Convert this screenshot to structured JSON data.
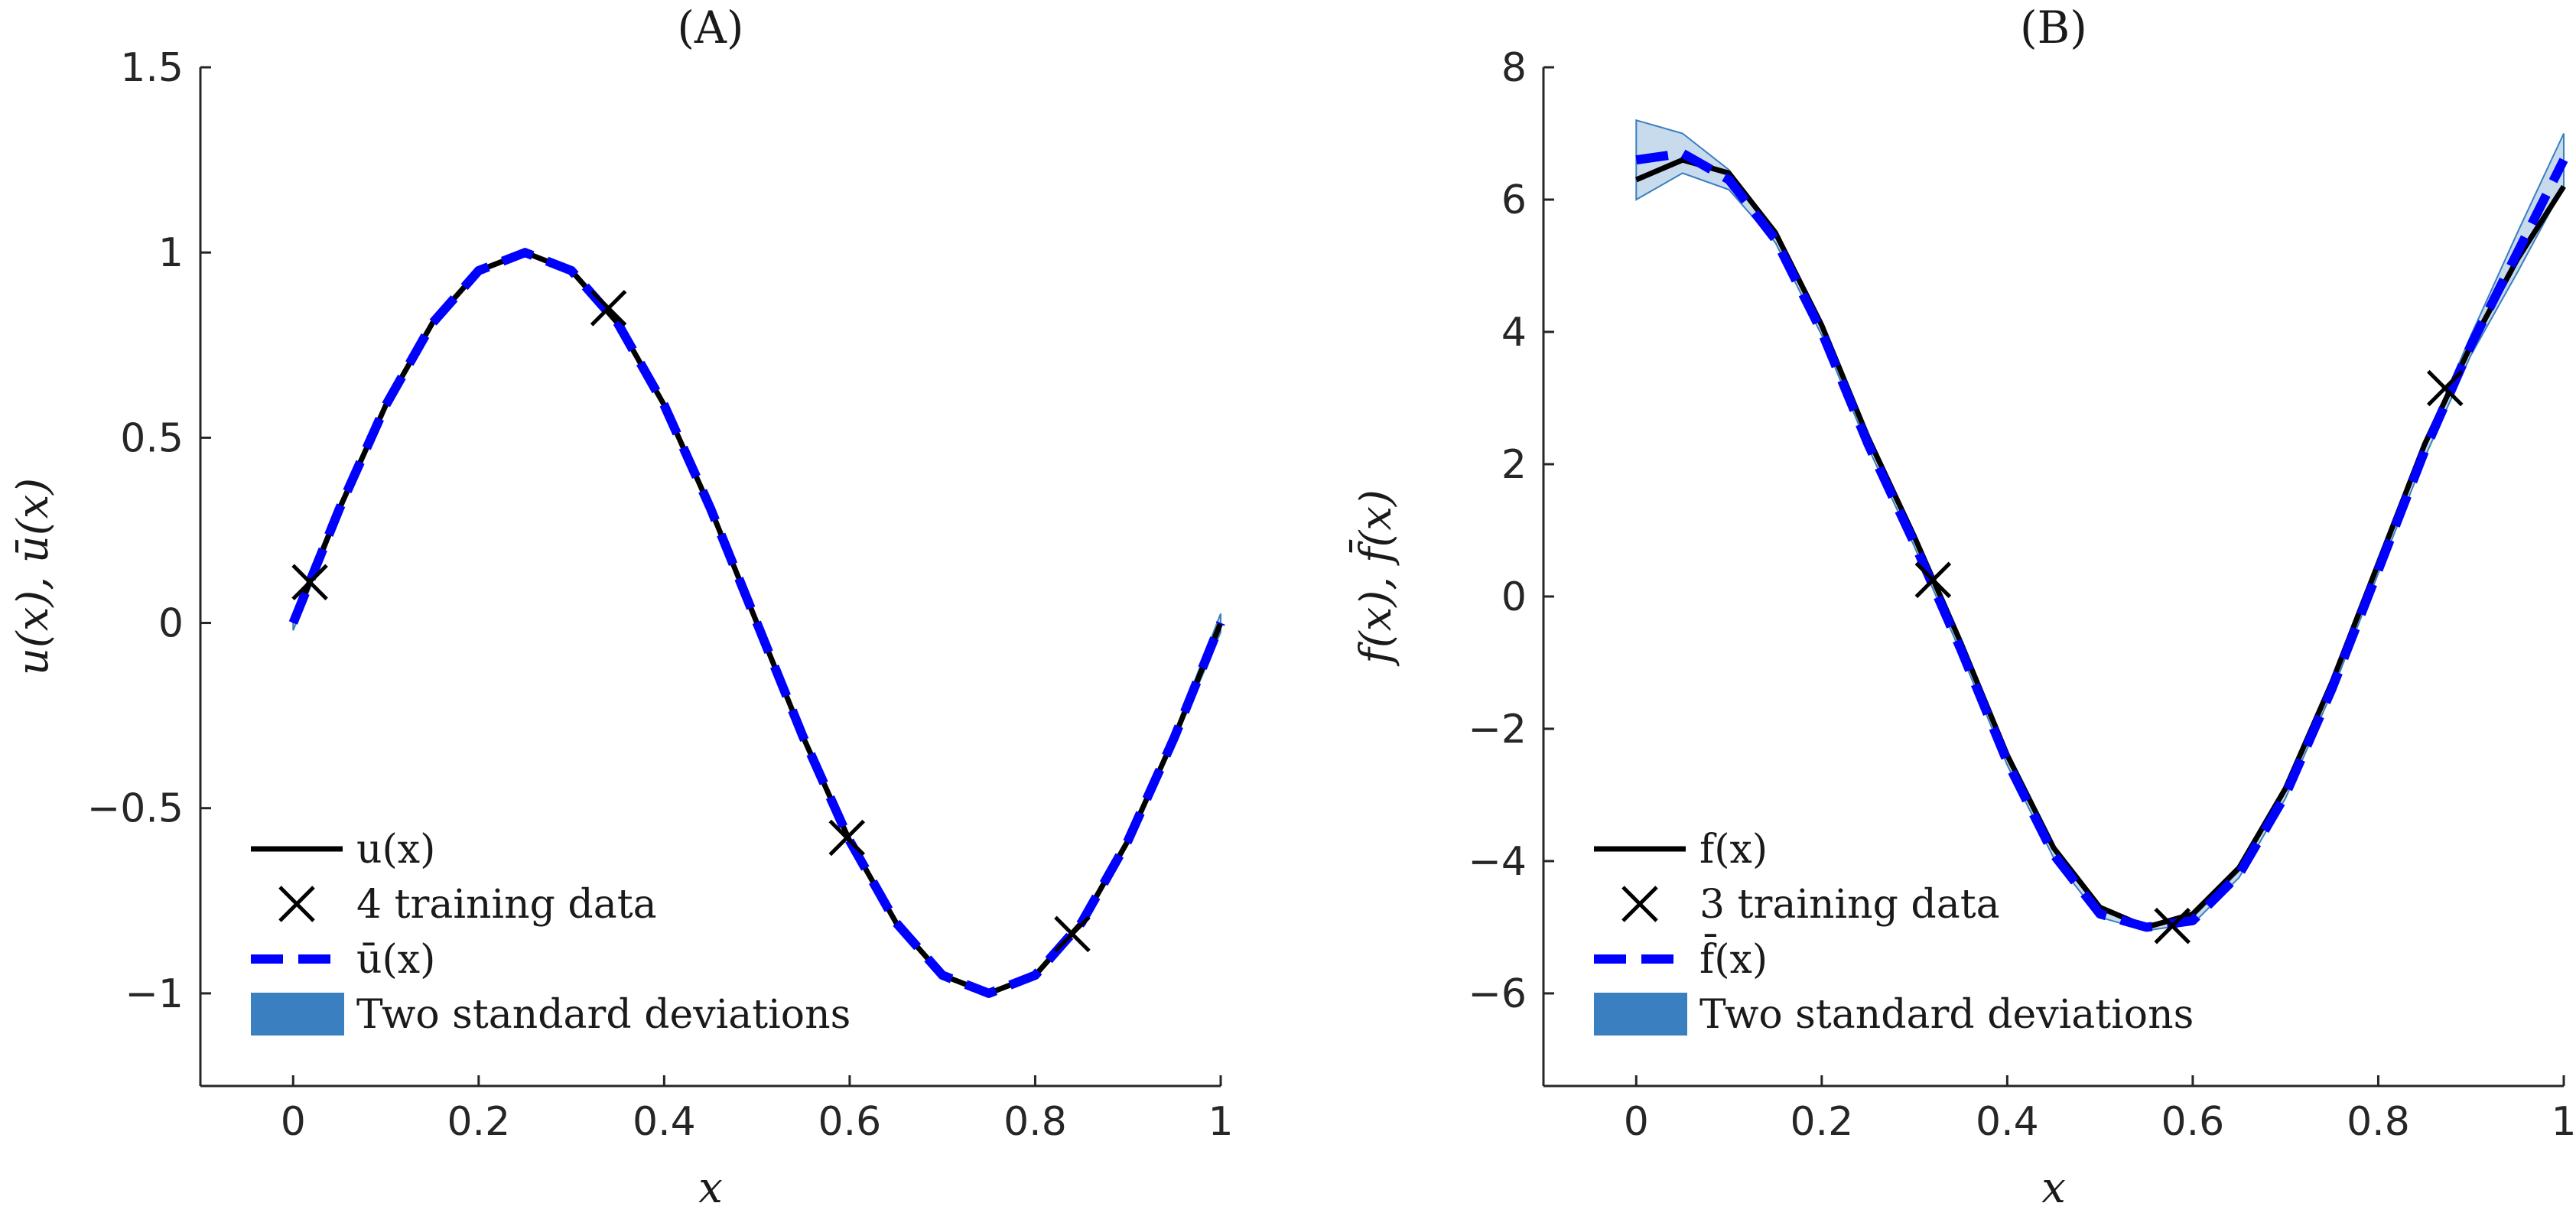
{
  "chart_data": [
    {
      "panel": "A",
      "type": "line",
      "title": "(A)",
      "xlabel": "x",
      "ylabel": "u(x), ū(x)",
      "xlim": [
        -0.1,
        1.0
      ],
      "ylim": [
        -1.25,
        1.5
      ],
      "xticks": [
        0,
        0.2,
        0.4,
        0.6,
        0.8,
        1
      ],
      "xtick_labels": [
        "0",
        "0.2",
        "0.4",
        "0.6",
        "0.8",
        "1"
      ],
      "yticks": [
        1.5,
        1,
        0.5,
        0,
        -0.5,
        -1
      ],
      "ytick_labels": [
        "1.5",
        "1",
        "0.5",
        "0",
        "−0.5",
        "−1"
      ],
      "grid": false,
      "legend_location": "bottom-left",
      "series": [
        {
          "name": "u(x)",
          "style": "solid",
          "color": "#000000",
          "x": [
            0,
            0.05,
            0.1,
            0.15,
            0.2,
            0.25,
            0.3,
            0.35,
            0.4,
            0.45,
            0.5,
            0.55,
            0.6,
            0.65,
            0.7,
            0.75,
            0.8,
            0.85,
            0.9,
            0.95,
            1.0
          ],
          "y": [
            0,
            0.309,
            0.588,
            0.809,
            0.951,
            1.0,
            0.951,
            0.809,
            0.588,
            0.309,
            0,
            -0.309,
            -0.588,
            -0.809,
            -0.951,
            -1.0,
            -0.951,
            -0.809,
            -0.588,
            -0.309,
            0
          ]
        },
        {
          "name": "4 training data",
          "style": "marker-x",
          "color": "#000000",
          "x": [
            0.018,
            0.34,
            0.597,
            0.84
          ],
          "y": [
            0.11,
            0.85,
            -0.58,
            -0.84
          ]
        },
        {
          "name": "ū(x)",
          "style": "dashed",
          "color": "#0000ff",
          "x": [
            0,
            0.05,
            0.1,
            0.15,
            0.2,
            0.25,
            0.3,
            0.35,
            0.4,
            0.45,
            0.5,
            0.55,
            0.6,
            0.65,
            0.7,
            0.75,
            0.8,
            0.85,
            0.9,
            0.95,
            1.0
          ],
          "y": [
            0,
            0.309,
            0.588,
            0.809,
            0.951,
            1.0,
            0.951,
            0.809,
            0.588,
            0.309,
            0,
            -0.309,
            -0.588,
            -0.809,
            -0.951,
            -1.0,
            -0.951,
            -0.809,
            -0.588,
            -0.309,
            0
          ]
        },
        {
          "name": "Two standard deviations",
          "style": "band",
          "color": "#3a7fbf",
          "x": [
            0,
            0.05,
            0.1,
            0.15,
            0.2,
            0.25,
            0.3,
            0.35,
            0.4,
            0.45,
            0.5,
            0.55,
            0.6,
            0.65,
            0.7,
            0.75,
            0.8,
            0.85,
            0.9,
            0.95,
            1.0
          ],
          "upper": [
            0.02,
            0.322,
            0.598,
            0.815,
            0.955,
            1.004,
            0.955,
            0.812,
            0.592,
            0.313,
            0.004,
            -0.305,
            -0.584,
            -0.804,
            -0.946,
            -0.995,
            -0.945,
            -0.803,
            -0.58,
            -0.298,
            0.025
          ],
          "lower": [
            -0.02,
            0.296,
            0.578,
            0.803,
            0.947,
            0.996,
            0.947,
            0.806,
            0.584,
            0.305,
            -0.004,
            -0.313,
            -0.592,
            -0.814,
            -0.956,
            -1.005,
            -0.957,
            -0.815,
            -0.596,
            -0.32,
            -0.025
          ]
        }
      ]
    },
    {
      "panel": "B",
      "type": "line",
      "title": "(B)",
      "xlabel": "x",
      "ylabel": "f(x), f̄(x)",
      "xlim": [
        -0.1,
        1.0
      ],
      "ylim": [
        -7.4,
        8
      ],
      "xticks": [
        0,
        0.2,
        0.4,
        0.6,
        0.8,
        1
      ],
      "xtick_labels": [
        "0",
        "0.2",
        "0.4",
        "0.6",
        "0.8",
        "1"
      ],
      "yticks": [
        8,
        6,
        4,
        2,
        0,
        -2,
        -4,
        -6
      ],
      "ytick_labels": [
        "8",
        "6",
        "4",
        "2",
        "0",
        "−2",
        "−4",
        "−6"
      ],
      "grid": false,
      "legend_location": "bottom-left",
      "series": [
        {
          "name": "f(x)",
          "style": "solid",
          "color": "#000000",
          "x": [
            0,
            0.05,
            0.1,
            0.15,
            0.2,
            0.25,
            0.3,
            0.35,
            0.4,
            0.45,
            0.5,
            0.55,
            0.6,
            0.65,
            0.7,
            0.75,
            0.8,
            0.85,
            0.9,
            0.95,
            1.0
          ],
          "y": [
            6.3,
            6.6,
            6.4,
            5.5,
            4.1,
            2.4,
            0.9,
            -0.7,
            -2.4,
            -3.8,
            -4.7,
            -5.0,
            -4.8,
            -4.1,
            -2.9,
            -1.3,
            0.5,
            2.3,
            3.8,
            5.1,
            6.2
          ]
        },
        {
          "name": "3 training data",
          "style": "marker-x",
          "color": "#000000",
          "x": [
            0.32,
            0.578,
            0.872
          ],
          "y": [
            0.25,
            -4.98,
            3.15
          ]
        },
        {
          "name": "f̄(x)",
          "style": "dashed",
          "color": "#0000ff",
          "x": [
            0,
            0.05,
            0.1,
            0.15,
            0.2,
            0.25,
            0.3,
            0.35,
            0.4,
            0.45,
            0.5,
            0.55,
            0.6,
            0.65,
            0.7,
            0.75,
            0.8,
            0.85,
            0.9,
            0.95,
            1.0
          ],
          "y": [
            6.6,
            6.7,
            6.3,
            5.4,
            4.0,
            2.3,
            0.8,
            -0.8,
            -2.5,
            -3.9,
            -4.8,
            -5.0,
            -4.9,
            -4.2,
            -3.0,
            -1.4,
            0.4,
            2.2,
            3.8,
            5.2,
            6.6
          ]
        },
        {
          "name": "Two standard deviations",
          "style": "band",
          "color": "#3a7fbf",
          "x": [
            0,
            0.05,
            0.1,
            0.15,
            0.2,
            0.25,
            0.3,
            0.35,
            0.4,
            0.45,
            0.5,
            0.55,
            0.6,
            0.65,
            0.7,
            0.75,
            0.8,
            0.85,
            0.9,
            0.95,
            1.0
          ],
          "upper": [
            7.2,
            7.0,
            6.45,
            5.45,
            4.05,
            2.35,
            0.85,
            -0.75,
            -2.45,
            -3.85,
            -4.75,
            -4.95,
            -4.85,
            -4.15,
            -2.95,
            -1.35,
            0.45,
            2.3,
            3.95,
            5.5,
            7.0
          ],
          "lower": [
            6.0,
            6.4,
            6.15,
            5.35,
            3.95,
            2.25,
            0.75,
            -0.85,
            -2.55,
            -3.95,
            -4.85,
            -5.05,
            -4.95,
            -4.25,
            -3.05,
            -1.45,
            0.35,
            2.1,
            3.65,
            4.9,
            6.2
          ]
        }
      ]
    }
  ]
}
